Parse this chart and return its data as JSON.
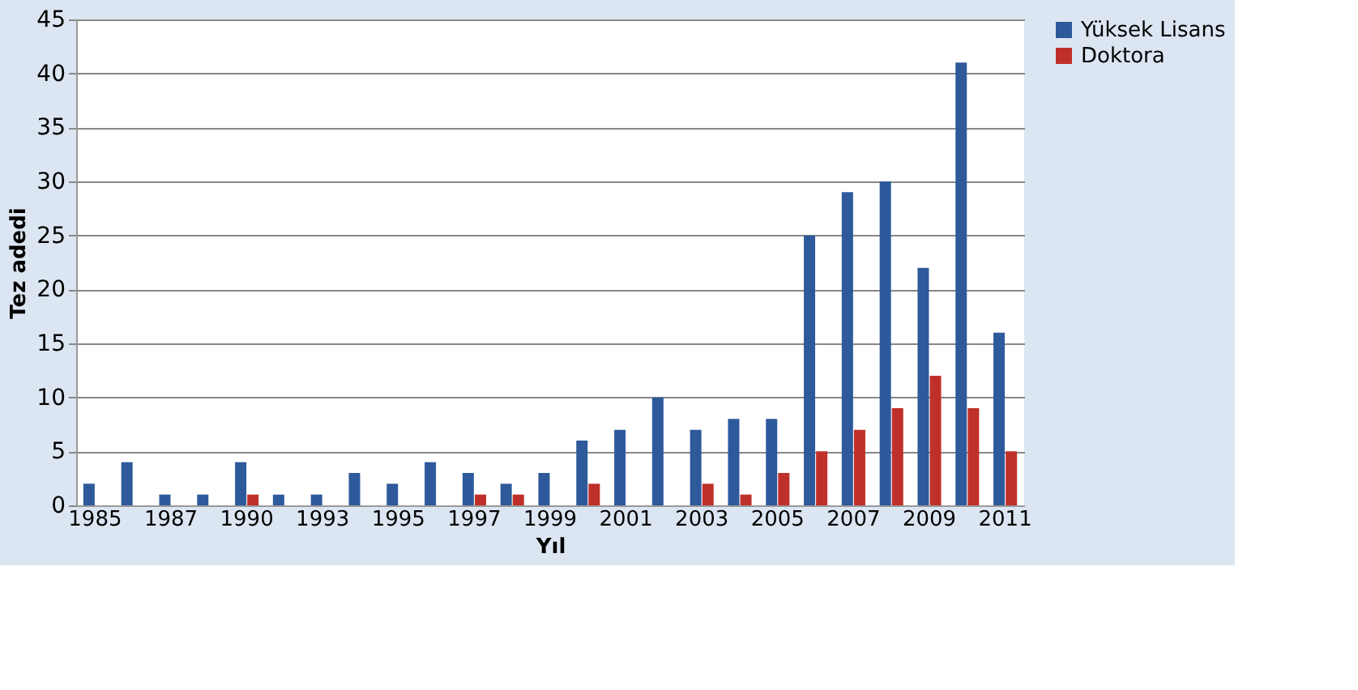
{
  "chart_data": {
    "type": "bar",
    "xlabel": "Yıl",
    "ylabel": "Tez adedi",
    "categories": [
      "1985",
      null,
      "1987",
      null,
      "1990",
      null,
      "1993",
      null,
      "1995",
      null,
      "1997",
      null,
      "1999",
      null,
      "2001",
      null,
      "2003",
      null,
      "2005",
      null,
      "2007",
      null,
      "2009",
      null,
      "2011"
    ],
    "series": [
      {
        "name": "Yüksek Lisans",
        "color": "#2e5a9c",
        "values": [
          2,
          4,
          1,
          1,
          4,
          1,
          1,
          3,
          2,
          4,
          3,
          2,
          3,
          6,
          7,
          10,
          7,
          8,
          8,
          25,
          29,
          30,
          22,
          41,
          16
        ]
      },
      {
        "name": "Doktora",
        "color": "#c0302a",
        "values": [
          0,
          0,
          0,
          0,
          1,
          0,
          0,
          0,
          0,
          0,
          1,
          1,
          0,
          2,
          0,
          0,
          2,
          1,
          3,
          5,
          7,
          9,
          12,
          9,
          5
        ]
      }
    ],
    "ylim": [
      0,
      45
    ],
    "yticks": [
      0,
      5,
      10,
      15,
      20,
      25,
      30,
      35,
      40,
      45
    ],
    "grid": "y",
    "legend": "right"
  }
}
